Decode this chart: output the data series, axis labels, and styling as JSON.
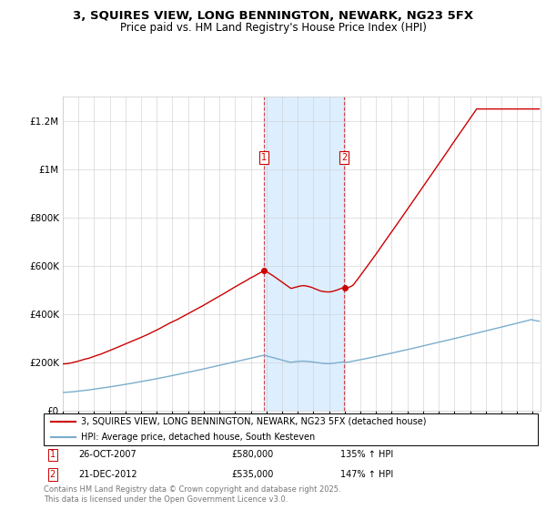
{
  "title": "3, SQUIRES VIEW, LONG BENNINGTON, NEWARK, NG23 5FX",
  "subtitle": "Price paid vs. HM Land Registry's House Price Index (HPI)",
  "legend_line1": "3, SQUIRES VIEW, LONG BENNINGTON, NEWARK, NG23 5FX (detached house)",
  "legend_line2": "HPI: Average price, detached house, South Kesteven",
  "sale1_date": "26-OCT-2007",
  "sale1_price": "£580,000",
  "sale1_hpi": "135% ↑ HPI",
  "sale2_date": "21-DEC-2012",
  "sale2_price": "£535,000",
  "sale2_hpi": "147% ↑ HPI",
  "footer": "Contains HM Land Registry data © Crown copyright and database right 2025.\nThis data is licensed under the Open Government Licence v3.0.",
  "red_color": "#cc0000",
  "blue_color": "#7aadcc",
  "shade_color": "#ddeeff",
  "marker_color": "#cc0000",
  "sale1_year": 2007.82,
  "sale2_year": 2012.97,
  "sale1_price_val": 580000,
  "sale2_price_val": 535000,
  "xmin": 1995.5,
  "xmax": 2025.5,
  "ylim_max": 1300000
}
